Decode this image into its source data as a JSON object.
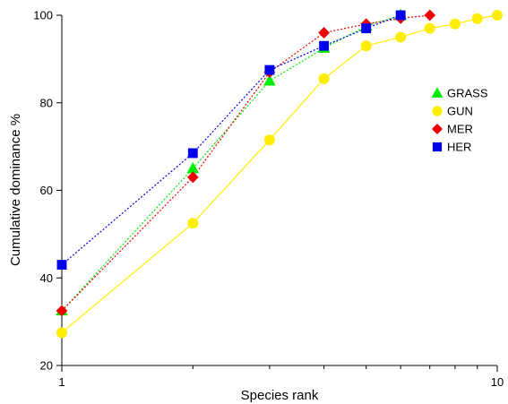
{
  "chart_data": {
    "type": "line",
    "xlabel": "Species rank",
    "ylabel": "Cumulative dominance %",
    "xscale": "log",
    "xlim": [
      1,
      10
    ],
    "ylim": [
      20,
      100
    ],
    "xticks": [
      1,
      10
    ],
    "xtick_labels": [
      "1",
      "10"
    ],
    "yticks": [
      20,
      40,
      60,
      80,
      100
    ],
    "ytick_labels": [
      "20",
      "40",
      "60",
      "80",
      "100"
    ],
    "grid": false,
    "legend_position": "right",
    "series": [
      {
        "name": "GRASS",
        "marker": "triangle",
        "color": "#00ee00",
        "line_style": "dotted",
        "x": [
          1,
          2,
          3,
          4,
          5,
          6
        ],
        "y": [
          32.5,
          65,
          85,
          92.5,
          97.5,
          100
        ]
      },
      {
        "name": "GUN",
        "marker": "circle",
        "color": "#ffee00",
        "line_style": "solid",
        "x": [
          1,
          2,
          3,
          4,
          5,
          6,
          7,
          8,
          9,
          10
        ],
        "y": [
          27.5,
          52.5,
          71.5,
          85.5,
          93,
          95,
          97,
          98,
          99.2,
          100
        ]
      },
      {
        "name": "MER",
        "marker": "diamond",
        "color": "#ee0000",
        "line_style": "dotted",
        "x": [
          1,
          2,
          3,
          4,
          5,
          6,
          7
        ],
        "y": [
          32.5,
          63,
          87,
          96,
          98,
          99.3,
          100
        ]
      },
      {
        "name": "HER",
        "marker": "square",
        "color": "#0000ee",
        "line_style": "dotted",
        "x": [
          1,
          2,
          3,
          4,
          5,
          6
        ],
        "y": [
          43,
          68.5,
          87.5,
          93,
          97,
          100
        ]
      }
    ]
  }
}
